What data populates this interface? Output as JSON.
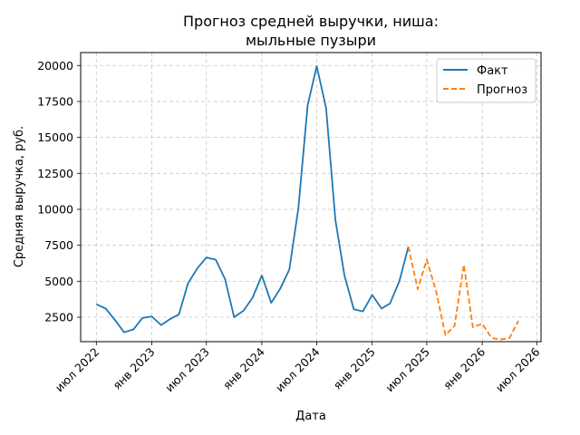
{
  "chart_data": {
    "type": "line",
    "title": [
      "Прогноз средней выручки, ниша:",
      "мыльные пузыри"
    ],
    "xlabel": "Дата",
    "ylabel": "Средняя выручка, руб.",
    "grid": true,
    "legend_position": "top-right",
    "ylim": [
      800,
      20900
    ],
    "xlim": [
      "2022-05-10",
      "2026-07-15"
    ],
    "x_ticks": [
      {
        "date": "2022-07-01",
        "label": "июл 2022"
      },
      {
        "date": "2023-01-01",
        "label": "янв 2023"
      },
      {
        "date": "2023-07-01",
        "label": "июл 2023"
      },
      {
        "date": "2024-01-01",
        "label": "янв 2024"
      },
      {
        "date": "2024-07-01",
        "label": "июл 2024"
      },
      {
        "date": "2025-01-01",
        "label": "янв 2025"
      },
      {
        "date": "2025-07-01",
        "label": "июл 2025"
      },
      {
        "date": "2026-01-01",
        "label": "янв 2026"
      },
      {
        "date": "2026-07-01",
        "label": "июл 2026"
      }
    ],
    "y_ticks": [
      2500,
      5000,
      7500,
      10000,
      12500,
      15000,
      17500,
      20000
    ],
    "series": [
      {
        "name": "Факт",
        "color": "#1f77b4",
        "style": "solid",
        "x": [
          "2022-07-01",
          "2022-08-01",
          "2022-09-01",
          "2022-10-01",
          "2022-11-01",
          "2022-12-01",
          "2023-01-01",
          "2023-02-01",
          "2023-03-01",
          "2023-04-01",
          "2023-05-01",
          "2023-06-01",
          "2023-07-01",
          "2023-08-01",
          "2023-09-01",
          "2023-10-01",
          "2023-11-01",
          "2023-12-01",
          "2024-01-01",
          "2024-02-01",
          "2024-03-01",
          "2024-04-01",
          "2024-05-01",
          "2024-06-01",
          "2024-07-01",
          "2024-08-01",
          "2024-09-01",
          "2024-10-01",
          "2024-11-01",
          "2024-12-01",
          "2025-01-01",
          "2025-02-01",
          "2025-03-01",
          "2025-04-01",
          "2025-05-01"
        ],
        "values": [
          3400,
          3100,
          2300,
          1450,
          1650,
          2450,
          2550,
          1950,
          2350,
          2700,
          4850,
          5900,
          6650,
          6500,
          5150,
          2500,
          2950,
          3850,
          5400,
          3500,
          4450,
          5800,
          10050,
          17250,
          19950,
          17050,
          9250,
          5400,
          3050,
          2900,
          4050,
          3100,
          3450,
          5000,
          7400
        ]
      },
      {
        "name": "Прогноз",
        "color": "#ff7f0e",
        "style": "dashed",
        "x": [
          "2025-05-01",
          "2025-06-01",
          "2025-07-01",
          "2025-08-01",
          "2025-09-01",
          "2025-10-01",
          "2025-11-01",
          "2025-12-01",
          "2026-01-01",
          "2026-02-01",
          "2026-03-01",
          "2026-04-01",
          "2026-05-01"
        ],
        "values": [
          7400,
          4450,
          6500,
          4300,
          1250,
          1900,
          6150,
          1800,
          2050,
          1050,
          950,
          1050,
          2250
        ]
      }
    ]
  }
}
